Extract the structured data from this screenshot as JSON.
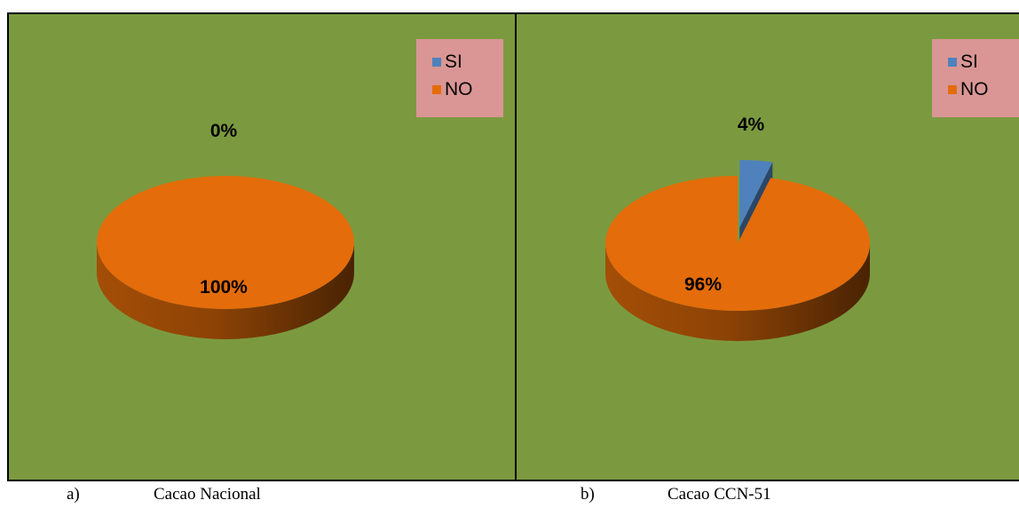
{
  "colors": {
    "background": "#7b9a3f",
    "si": "#4f81bd",
    "no": "#e46c0a",
    "legend_bg": "#d99694"
  },
  "legend": {
    "si": "SI",
    "no": "NO"
  },
  "captions": [
    {
      "letter": "a)",
      "text": "Cacao Nacional"
    },
    {
      "letter": "b)",
      "text": "Cacao CCN-51"
    }
  ],
  "chart_data": [
    {
      "type": "pie",
      "caption": "Cacao Nacional",
      "categories": [
        "SI",
        "NO"
      ],
      "values": [
        0,
        100
      ],
      "labels": [
        "0%",
        "100%"
      ],
      "legend": "top-right"
    },
    {
      "type": "pie",
      "caption": "Cacao CCN-51",
      "categories": [
        "SI",
        "NO"
      ],
      "values": [
        4,
        96
      ],
      "labels": [
        "4%",
        "96%"
      ],
      "legend": "top-right"
    }
  ]
}
